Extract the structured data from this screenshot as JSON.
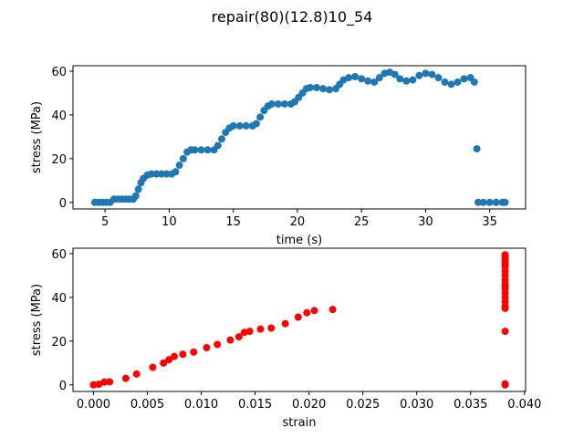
{
  "title": "repair(80)(12.8)10_54",
  "chart_data": [
    {
      "type": "scatter",
      "xlabel": "time (s)",
      "ylabel": "stress (MPa)",
      "xlim": [
        2.5,
        37.8
      ],
      "ylim": [
        -3,
        62.5
      ],
      "xticks": [
        5,
        10,
        15,
        20,
        25,
        30,
        35
      ],
      "yticks": [
        0,
        20,
        40,
        60
      ],
      "series": [
        {
          "color": "#1f77b4",
          "x": [
            4.2,
            4.5,
            4.8,
            5.1,
            5.4,
            5.7,
            6.0,
            6.3,
            6.6,
            6.9,
            7.2,
            7.4,
            7.6,
            7.8,
            8.0,
            8.3,
            8.6,
            9.0,
            9.4,
            9.8,
            10.2,
            10.5,
            10.8,
            11.1,
            11.4,
            11.7,
            12.0,
            12.5,
            13.0,
            13.5,
            13.8,
            14.1,
            14.4,
            14.7,
            15.0,
            15.5,
            16.0,
            16.5,
            16.8,
            17.1,
            17.4,
            17.7,
            18.0,
            18.5,
            19.0,
            19.5,
            19.8,
            20.1,
            20.4,
            20.7,
            21.0,
            21.5,
            22.0,
            22.5,
            23.0,
            23.3,
            23.6,
            24.0,
            24.5,
            25.0,
            25.5,
            26.0,
            26.4,
            26.8,
            27.2,
            27.6,
            28.0,
            28.5,
            29.0,
            29.5,
            30.0,
            30.5,
            31.0,
            31.5,
            32.0,
            32.5,
            33.0,
            33.5,
            33.8,
            34.0,
            34.1,
            34.5,
            35.0,
            35.5,
            36.0,
            36.2
          ],
          "values": [
            0,
            0,
            0,
            0,
            0,
            1.5,
            1.5,
            1.5,
            1.5,
            1.5,
            1.5,
            3,
            6,
            9,
            11,
            12.5,
            13,
            13,
            13,
            13,
            13,
            14,
            17,
            20,
            23,
            24,
            24,
            24,
            24,
            24,
            26,
            29,
            32,
            34,
            35,
            35,
            35,
            35,
            36,
            39,
            42,
            44,
            45,
            45,
            45,
            45,
            46,
            48,
            50,
            52,
            52.5,
            52.5,
            52,
            51.5,
            52,
            54,
            56,
            57,
            57.5,
            56.5,
            55.5,
            55,
            57,
            59,
            59.5,
            58.5,
            56.5,
            55.5,
            56,
            58,
            59,
            58.5,
            57,
            55,
            54,
            55,
            56.5,
            57,
            55,
            24.5,
            0,
            0,
            0,
            0,
            0,
            0
          ]
        }
      ]
    },
    {
      "type": "scatter",
      "xlabel": "strain",
      "ylabel": "stress (MPa)",
      "xlim": [
        -0.0019,
        0.0401
      ],
      "ylim": [
        -3,
        62.5
      ],
      "xticks": [
        {
          "value": 0,
          "label": "0.000"
        },
        0.005,
        {
          "value": 0.01,
          "label": "0.010"
        },
        0.015,
        {
          "value": 0.02,
          "label": "0.020"
        },
        0.025,
        {
          "value": 0.03,
          "label": "0.030"
        },
        0.035,
        {
          "value": 0.04,
          "label": "0.040"
        }
      ],
      "yticks": [
        0,
        20,
        40,
        60
      ],
      "series": [
        {
          "color": "#ff0000",
          "x": [
            0,
            0.0005,
            0.001,
            0.0015,
            0.003,
            0.004,
            0.0055,
            0.0065,
            0.007,
            0.0075,
            0.0083,
            0.0093,
            0.0105,
            0.0115,
            0.0127,
            0.0135,
            0.014,
            0.0145,
            0.0155,
            0.0165,
            0.0178,
            0.019,
            0.0198,
            0.0205,
            0.0222,
            0.0382,
            0.0382,
            0.0382,
            0.0382,
            0.0382,
            0.0382,
            0.0382,
            0.0382,
            0.0382,
            0.0382,
            0.0382,
            0.0382,
            0.0382,
            0.0382,
            0.0382,
            0.0382,
            0.0382,
            0.0382,
            0.0382,
            0.0382,
            0.0382
          ],
          "values": [
            0,
            0.3,
            1.3,
            1.4,
            3,
            5,
            8,
            10,
            11.5,
            13,
            14,
            15,
            17,
            18.5,
            20.5,
            22,
            24,
            24.5,
            25.5,
            26,
            28,
            31,
            33,
            34,
            34.5,
            0,
            0.5,
            24.5,
            35,
            36,
            38,
            40,
            42,
            44,
            45,
            46,
            48,
            50,
            52,
            54,
            55,
            56,
            57,
            58,
            59,
            59.5
          ]
        }
      ]
    }
  ]
}
